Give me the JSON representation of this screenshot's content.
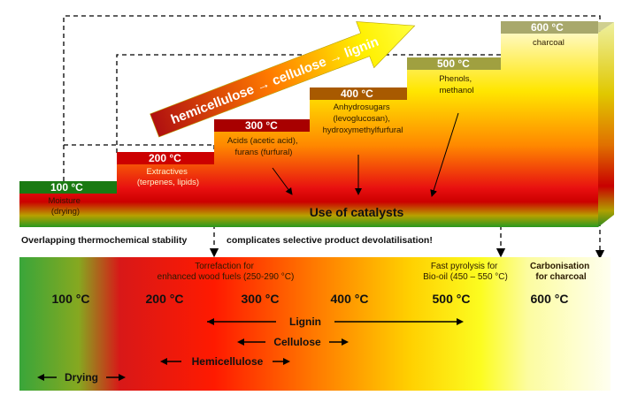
{
  "stairs": [
    {
      "temp": "100 °C",
      "desc": [
        "Moisture",
        "(drying)"
      ]
    },
    {
      "temp": "200 °C",
      "desc": [
        "Extractives",
        "(terpenes, lipids)"
      ]
    },
    {
      "temp": "300 °C",
      "desc": [
        "Acids (acetic acid),",
        "furans (furfural)"
      ]
    },
    {
      "temp": "400 °C",
      "desc": [
        "Anhydrosugars",
        "(levoglucosan),",
        "hydroxymethylfurfural"
      ]
    },
    {
      "temp": "500 °C",
      "desc": [
        "Phenols,",
        "methanol"
      ]
    },
    {
      "temp": "600 °C",
      "desc": [
        "charcoal"
      ]
    }
  ],
  "arrow_text": "hemicellulose → cellulose → lignin",
  "catalysts": "Use of catalysts",
  "statement_left": "Overlapping thermochemical stability",
  "statement_right": "complicates selective product devolatilisation!",
  "bottom_temps": [
    "100 °C",
    "200 °C",
    "300 °C",
    "400 °C",
    "500 °C",
    "600 °C"
  ],
  "processes": {
    "torrefaction": [
      "Torrefaction for",
      "enhanced wood fuels (250-290 °C)"
    ],
    "fast_pyrolysis": [
      "Fast  pyrolysis for",
      "Bio-oil (450 – 550 °C)"
    ],
    "carbonisation": [
      "Carbonisation",
      "for charcoal"
    ]
  },
  "ranges": {
    "lignin": "Lignin",
    "cellulose": "Cellulose",
    "hemicellulose": "Hemicellulose",
    "drying": "Drying"
  }
}
